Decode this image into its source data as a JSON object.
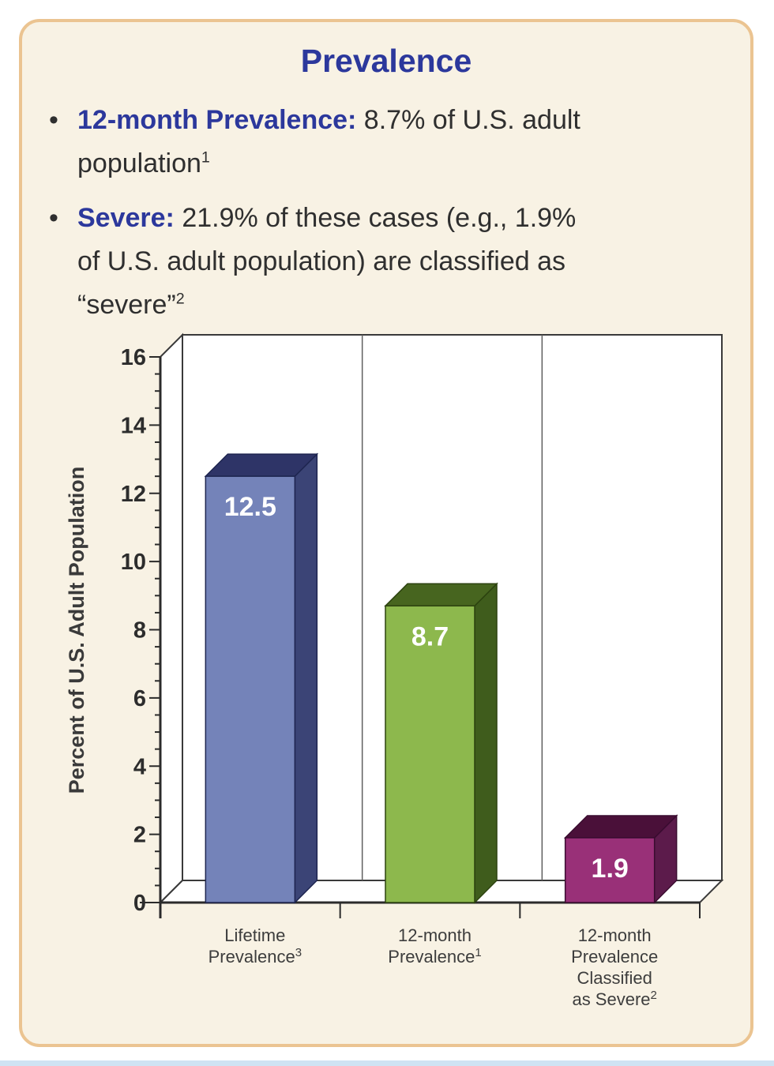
{
  "title": "Prevalence",
  "bullets": [
    {
      "lead": "12-month Prevalence:",
      "line1": " 8.7% of U.S. adult",
      "line2": "population",
      "sup": "1"
    },
    {
      "lead": "Severe:",
      "line1": " 21.9% of these cases (e.g., 1.9%",
      "line2": "of U.S. adult population) are classified as",
      "line3": "“severe”",
      "sup": "2"
    }
  ],
  "colors": {
    "accent_blue": "#2c389c",
    "card_background": "#f8f2e4",
    "card_border": "#ebc491",
    "body_text": "#2f2f2f",
    "axis_line": "#2b2b2b",
    "plot_background": "#ffffff",
    "bottom_strip": "#cfe3f3"
  },
  "chart_data": {
    "type": "bar",
    "effect": "3d",
    "title": "",
    "xlabel": "",
    "ylabel": "Percent of U.S. Adult Population",
    "ylim": [
      0,
      16
    ],
    "ytick_step": 2,
    "yminor_step": 0.5,
    "grid": "vertical column separators on back wall",
    "legend": "none",
    "categories": [
      {
        "label": "Lifetime Prevalence³",
        "lines": [
          [
            {
              "t": "Lifetime"
            }
          ],
          [
            {
              "t": "Prevalence"
            },
            {
              "t": "3",
              "sup": true
            }
          ]
        ]
      },
      {
        "label": "12-month Prevalence¹",
        "lines": [
          [
            {
              "t": "12-month"
            }
          ],
          [
            {
              "t": "Prevalence"
            },
            {
              "t": "1",
              "sup": true
            }
          ]
        ]
      },
      {
        "label": "12-month Prevalence Classified as Severe²",
        "lines": [
          [
            {
              "t": "12-month"
            }
          ],
          [
            {
              "t": "Prevalence"
            }
          ],
          [
            {
              "t": "Classified"
            }
          ],
          [
            {
              "t": "as Severe"
            },
            {
              "t": "2",
              "sup": true
            }
          ]
        ]
      }
    ],
    "values": [
      12.5,
      8.7,
      1.9
    ],
    "value_labels": [
      "12.5",
      "8.7",
      "1.9"
    ],
    "bar_colors": [
      {
        "front": "#7483b9",
        "top": "#2e3467",
        "side": "#3b4476",
        "edge": "#1e2550"
      },
      {
        "front": "#8db84d",
        "top": "#47651f",
        "side": "#3f5c1c",
        "edge": "#2c420f"
      },
      {
        "front": "#993078",
        "top": "#4a1039",
        "side": "#5c1b4b",
        "edge": "#3a0c30"
      }
    ]
  }
}
